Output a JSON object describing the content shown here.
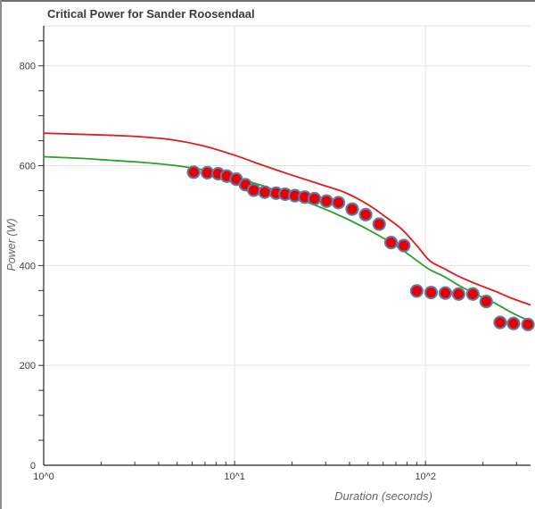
{
  "title": "Critical Power for Sander Roosendaal",
  "chart_data": {
    "type": "scatter",
    "title": "Critical Power for Sander Roosendaal",
    "xlabel": "Duration (seconds)",
    "ylabel": "Power (W)",
    "x_scale": "log",
    "xlim": [
      1,
      355
    ],
    "ylim": [
      0,
      880
    ],
    "grid": true,
    "legend": "none",
    "x_major_ticks": [
      {
        "value": 1,
        "label": "10^0"
      },
      {
        "value": 10,
        "label": "10^1"
      },
      {
        "value": 100,
        "label": "10^2"
      }
    ],
    "x_minor_ticks": [
      2,
      3,
      4,
      5,
      6,
      7,
      8,
      9,
      20,
      30,
      40,
      50,
      60,
      70,
      80,
      90,
      200,
      300
    ],
    "y_major_ticks": [
      {
        "value": 0,
        "label": "0"
      },
      {
        "value": 200,
        "label": "200"
      },
      {
        "value": 400,
        "label": "400"
      },
      {
        "value": 600,
        "label": "600"
      },
      {
        "value": 800,
        "label": "800"
      }
    ],
    "y_minor_step": 50,
    "series": [
      {
        "name": "critical-power-model-red",
        "type": "line",
        "color": "#e31a1a",
        "width": 1.8,
        "points": [
          [
            1,
            665
          ],
          [
            1.5,
            663
          ],
          [
            2.2,
            661
          ],
          [
            3.2,
            658
          ],
          [
            4.7,
            652
          ],
          [
            6.8,
            640
          ],
          [
            10,
            621
          ],
          [
            14,
            601
          ],
          [
            20,
            581
          ],
          [
            28,
            563
          ],
          [
            38,
            546
          ],
          [
            50,
            522
          ],
          [
            62,
            497
          ],
          [
            75,
            473
          ],
          [
            90,
            440
          ],
          [
            105,
            410
          ],
          [
            125,
            394
          ],
          [
            150,
            378
          ],
          [
            185,
            363
          ],
          [
            230,
            349
          ],
          [
            285,
            334
          ],
          [
            355,
            321
          ]
        ]
      },
      {
        "name": "critical-power-model-green",
        "type": "line",
        "color": "#2ca02c",
        "width": 1.8,
        "points": [
          [
            1,
            618
          ],
          [
            1.5,
            615
          ],
          [
            2.2,
            611
          ],
          [
            3.2,
            607
          ],
          [
            4.7,
            601
          ],
          [
            6.8,
            592
          ],
          [
            10,
            576
          ],
          [
            14,
            560
          ],
          [
            20,
            538
          ],
          [
            28,
            517
          ],
          [
            38,
            495
          ],
          [
            50,
            472
          ],
          [
            62,
            452
          ],
          [
            75,
            432
          ],
          [
            90,
            410
          ],
          [
            105,
            392
          ],
          [
            125,
            378
          ],
          [
            150,
            360
          ],
          [
            185,
            342
          ],
          [
            230,
            325
          ],
          [
            285,
            305
          ],
          [
            355,
            288
          ]
        ]
      },
      {
        "name": "power-duration-data",
        "type": "scatter",
        "marker": {
          "fill": "#e60000",
          "stroke": "#5b7fad",
          "radius": 6.6,
          "stroke_width": 2
        },
        "points": [
          [
            6.1,
            587
          ],
          [
            7.2,
            586
          ],
          [
            8.2,
            584
          ],
          [
            9.1,
            579
          ],
          [
            10.2,
            573
          ],
          [
            11.4,
            562
          ],
          [
            12.6,
            551
          ],
          [
            14.4,
            547
          ],
          [
            16.5,
            545
          ],
          [
            18.4,
            543
          ],
          [
            20.7,
            540
          ],
          [
            23.3,
            537
          ],
          [
            26.2,
            534
          ],
          [
            30.3,
            529
          ],
          [
            35,
            526
          ],
          [
            41.3,
            513
          ],
          [
            48.6,
            502
          ],
          [
            57.2,
            483
          ],
          [
            66,
            446
          ],
          [
            77,
            440
          ],
          [
            90,
            349
          ],
          [
            107,
            346
          ],
          [
            127,
            345
          ],
          [
            149,
            343
          ],
          [
            177,
            343
          ],
          [
            208,
            328
          ],
          [
            246,
            286
          ],
          [
            289,
            284
          ],
          [
            344,
            282
          ]
        ]
      }
    ],
    "colors": {
      "grid": "#e3e3e3",
      "axis": "#222222",
      "tick": "#333333",
      "tick_label": "#3f3f3f",
      "title": "#3a3a3a",
      "axis_title": "#666666"
    }
  }
}
